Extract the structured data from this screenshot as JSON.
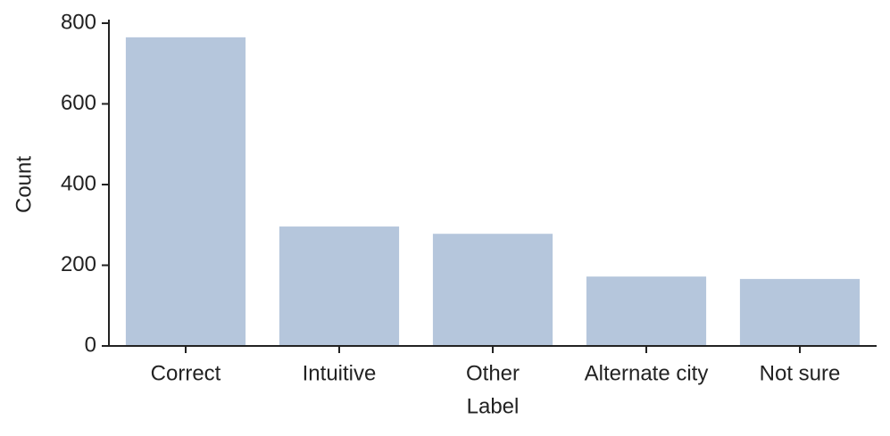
{
  "chart_data": {
    "type": "bar",
    "x_label": "Label",
    "y_label": "Count",
    "categories": [
      "Correct",
      "Intuitive",
      "Other",
      "Alternate city",
      "Not sure"
    ],
    "values": [
      765,
      296,
      278,
      172,
      166
    ],
    "color": "#b5c6dc",
    "ylim": [
      0,
      800
    ],
    "yticks": [
      0,
      200,
      400,
      600,
      800
    ],
    "grid": false
  }
}
